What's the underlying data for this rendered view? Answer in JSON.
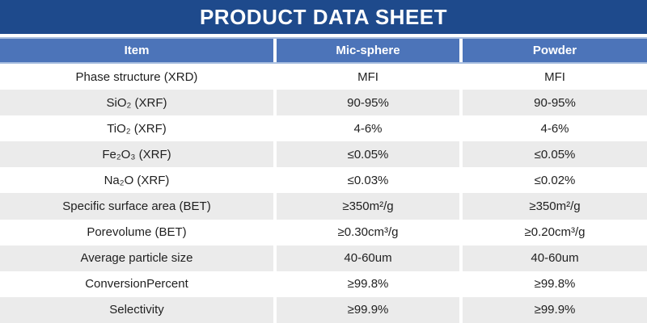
{
  "banner": {
    "title": "PRODUCT DATA SHEET"
  },
  "colors": {
    "banner_bg": "#1E4A8C",
    "header_bg": "#4C74B9",
    "header_border": "#A9BFE0",
    "row_stripe": "#EBEBEB",
    "text": "#1F1F1F"
  },
  "table": {
    "columns": [
      "Item",
      "Mic-sphere",
      "Powder"
    ],
    "rows": [
      {
        "item": "Phase structure (XRD)",
        "mic_sphere": "MFI",
        "powder": "MFI"
      },
      {
        "item": "SiO₂ (XRF)",
        "mic_sphere": "90-95%",
        "powder": "90-95%"
      },
      {
        "item": "TiO₂ (XRF)",
        "mic_sphere": "4-6%",
        "powder": "4-6%"
      },
      {
        "item": "Fe₂O₃ (XRF)",
        "mic_sphere": "≤0.05%",
        "powder": "≤0.05%"
      },
      {
        "item": "Na₂O (XRF)",
        "mic_sphere": "≤0.03%",
        "powder": "≤0.02%"
      },
      {
        "item": "Specific surface area (BET)",
        "mic_sphere": "≥350m²/g",
        "powder": "≥350m²/g"
      },
      {
        "item": "Porevolume (BET)",
        "mic_sphere": "≥0.30cm³/g",
        "powder": "≥0.20cm³/g"
      },
      {
        "item": "Average particle size",
        "mic_sphere": "40-60um",
        "powder": "40-60um"
      },
      {
        "item": "ConversionPercent",
        "mic_sphere": "≥99.8%",
        "powder": "≥99.8%"
      },
      {
        "item": "Selectivity",
        "mic_sphere": "≥99.9%",
        "powder": "≥99.9%"
      }
    ]
  }
}
